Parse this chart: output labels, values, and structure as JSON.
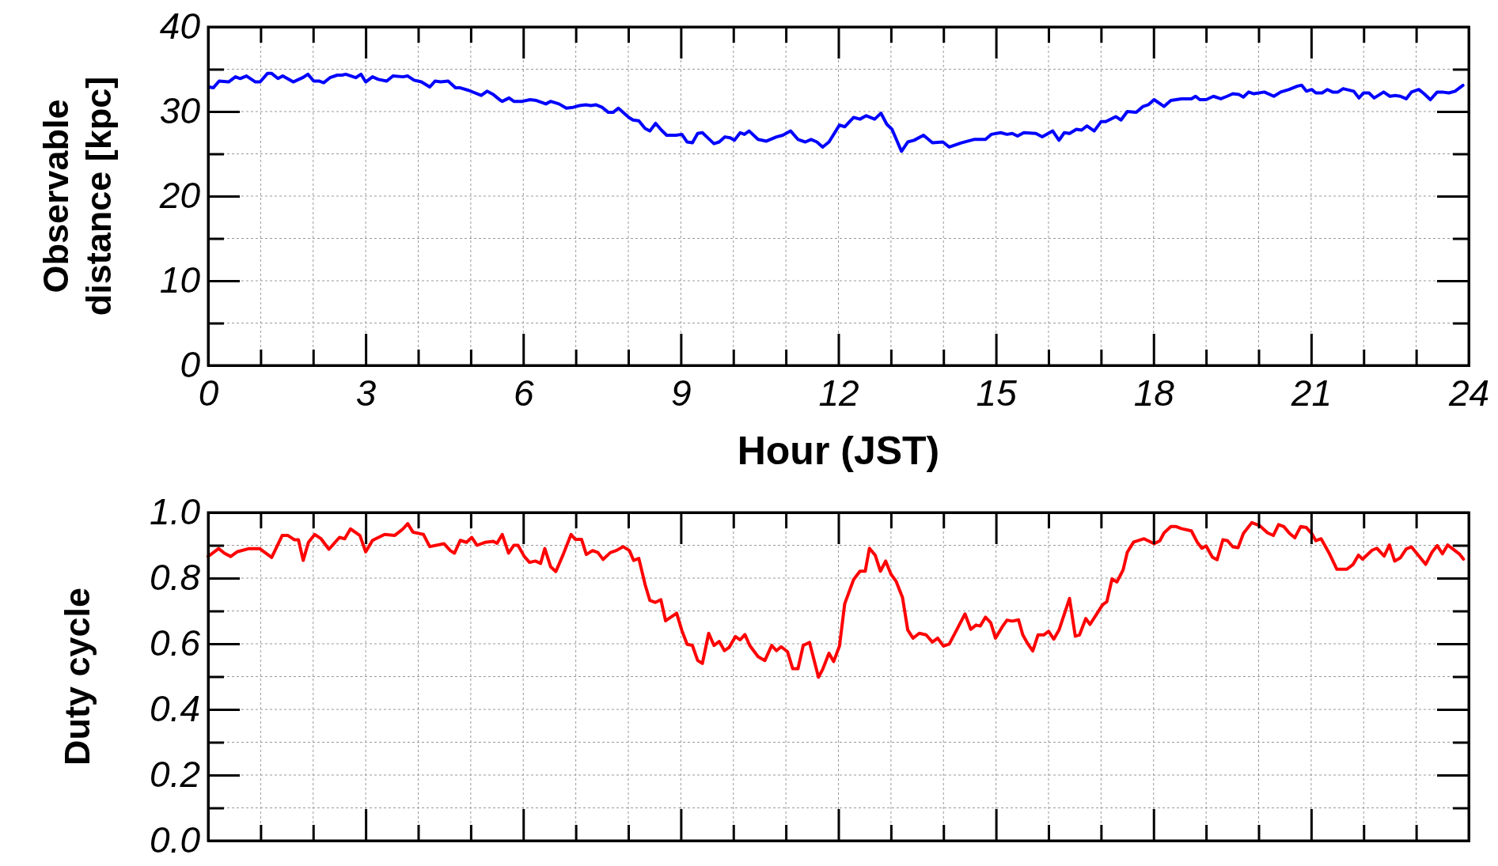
{
  "chart_data": [
    {
      "type": "line",
      "xlabel": "Hour (JST)",
      "ylabel": "Observable\ndistance [kpc]",
      "xlim": [
        0,
        24
      ],
      "ylim": [
        0,
        40
      ],
      "xticks": [
        0,
        {
          "value": 1,
          "label": null
        },
        {
          "value": 2,
          "label": null
        },
        3,
        {
          "value": 4,
          "label": null
        },
        {
          "value": 5,
          "label": null
        },
        6,
        {
          "value": 7,
          "label": null
        },
        {
          "value": 8,
          "label": null
        },
        9,
        {
          "value": 10,
          "label": null
        },
        {
          "value": 11,
          "label": null
        },
        12,
        {
          "value": 13,
          "label": null
        },
        {
          "value": 14,
          "label": null
        },
        15,
        {
          "value": 16,
          "label": null
        },
        {
          "value": 17,
          "label": null
        },
        18,
        {
          "value": 19,
          "label": null
        },
        {
          "value": 20,
          "label": null
        },
        21,
        {
          "value": 22,
          "label": null
        },
        {
          "value": 23,
          "label": null
        },
        24
      ],
      "yticks": [
        0,
        {
          "value": 5,
          "label": null
        },
        10,
        {
          "value": 15,
          "label": null
        },
        20,
        {
          "value": 25,
          "label": null
        },
        30,
        {
          "value": 35,
          "label": null
        },
        40
      ],
      "grid": true,
      "marker": "none",
      "line_style": "solid",
      "series": [
        {
          "color": "#0000ff",
          "x": [
            0.02,
            0.1,
            0.21,
            0.39,
            0.52,
            0.61,
            0.73,
            0.9,
            0.99,
            1.13,
            1.21,
            1.33,
            1.42,
            1.62,
            1.8,
            1.9,
            2.01,
            2.11,
            2.2,
            2.32,
            2.46,
            2.55,
            2.62,
            2.81,
            2.91,
            3.0,
            3.13,
            3.24,
            3.4,
            3.52,
            3.71,
            3.8,
            3.92,
            4.06,
            4.22,
            4.32,
            4.43,
            4.57,
            4.71,
            4.8,
            4.96,
            5.2,
            5.31,
            5.43,
            5.57,
            5.6,
            5.73,
            5.82,
            5.98,
            6.13,
            6.25,
            6.43,
            6.52,
            6.68,
            6.82,
            6.95,
            7.07,
            7.19,
            7.29,
            7.38,
            7.5,
            7.62,
            7.71,
            7.81,
            8.01,
            8.09,
            8.2,
            8.32,
            8.41,
            8.52,
            8.63,
            8.73,
            8.91,
            9.02,
            9.12,
            9.22,
            9.32,
            9.41,
            9.51,
            9.63,
            9.73,
            9.84,
            9.94,
            10.02,
            10.13,
            10.21,
            10.3,
            10.47,
            10.63,
            10.82,
            10.94,
            11.09,
            11.23,
            11.37,
            11.48,
            11.59,
            11.7,
            11.82,
            12.02,
            12.12,
            12.29,
            12.41,
            12.53,
            12.69,
            12.81,
            12.92,
            13.02,
            13.2,
            13.32,
            13.44,
            13.62,
            13.79,
            13.99,
            14.11,
            14.34,
            14.58,
            14.8,
            14.91,
            15.09,
            15.21,
            15.31,
            15.41,
            15.53,
            15.76,
            15.88,
            16.08,
            16.2,
            16.3,
            16.4,
            16.53,
            16.63,
            16.73,
            16.87,
            17.0,
            17.09,
            17.28,
            17.38,
            17.5,
            17.67,
            17.8,
            17.9,
            18.01,
            18.2,
            18.33,
            18.53,
            18.72,
            18.8,
            18.88,
            19.0,
            19.14,
            19.28,
            19.4,
            19.51,
            19.63,
            19.71,
            19.81,
            19.91,
            20.11,
            20.29,
            20.42,
            20.58,
            20.74,
            20.82,
            20.91,
            21.01,
            21.09,
            21.21,
            21.31,
            21.41,
            21.51,
            21.61,
            21.81,
            21.91,
            22.0,
            22.1,
            22.2,
            22.38,
            22.5,
            22.6,
            22.7,
            22.81,
            22.91,
            23.05,
            23.15,
            23.27,
            23.4,
            23.5,
            23.62,
            23.74,
            23.89
          ],
          "values": [
            32.9,
            32.8,
            33.6,
            33.5,
            34.1,
            33.9,
            34.2,
            33.5,
            33.5,
            34.5,
            34.5,
            33.9,
            34.2,
            33.5,
            34.0,
            34.4,
            33.6,
            33.6,
            33.4,
            34.0,
            34.3,
            34.3,
            34.4,
            34.0,
            34.4,
            33.5,
            34.1,
            33.8,
            33.6,
            34.2,
            34.1,
            34.2,
            33.7,
            33.5,
            32.9,
            33.6,
            33.5,
            33.6,
            32.8,
            32.8,
            32.5,
            31.9,
            32.4,
            32.0,
            31.3,
            31.2,
            31.6,
            31.2,
            31.2,
            31.4,
            31.3,
            30.9,
            31.2,
            30.9,
            30.4,
            30.5,
            30.7,
            30.8,
            30.7,
            30.8,
            30.5,
            29.9,
            29.9,
            30.4,
            29.3,
            29.0,
            28.9,
            28.0,
            27.7,
            28.6,
            27.8,
            27.2,
            27.2,
            27.3,
            26.4,
            26.3,
            27.4,
            27.5,
            26.9,
            26.2,
            26.4,
            27.0,
            26.9,
            26.6,
            27.5,
            27.3,
            27.7,
            26.7,
            26.5,
            27.0,
            27.2,
            27.7,
            26.7,
            26.4,
            26.7,
            26.4,
            25.8,
            26.4,
            28.4,
            28.2,
            29.3,
            29.1,
            29.5,
            29.1,
            29.8,
            28.5,
            27.9,
            25.3,
            26.4,
            26.6,
            27.2,
            26.3,
            26.4,
            25.8,
            26.3,
            26.7,
            26.7,
            27.3,
            27.5,
            27.3,
            27.4,
            27.1,
            27.5,
            27.4,
            27.0,
            27.7,
            26.6,
            27.5,
            27.4,
            27.9,
            27.8,
            28.3,
            27.7,
            28.8,
            28.8,
            29.4,
            29.0,
            30.0,
            29.9,
            30.6,
            30.8,
            31.4,
            30.6,
            31.3,
            31.5,
            31.5,
            31.8,
            31.4,
            31.4,
            31.8,
            31.5,
            31.8,
            32.1,
            32.0,
            31.7,
            32.3,
            32.1,
            32.3,
            31.8,
            32.3,
            32.6,
            33.0,
            33.1,
            32.4,
            32.6,
            32.2,
            32.2,
            32.6,
            32.3,
            32.3,
            32.7,
            32.4,
            31.6,
            32.2,
            32.2,
            31.6,
            32.3,
            31.8,
            31.9,
            31.8,
            31.5,
            32.3,
            32.6,
            32.1,
            31.4,
            32.3,
            32.3,
            32.2,
            32.4,
            33.1
          ]
        }
      ]
    },
    {
      "type": "line",
      "ylabel": "Duty cycle",
      "xlim": [
        0,
        24
      ],
      "ylim": [
        0,
        1
      ],
      "tick_labels": "y",
      "xticks": [
        0,
        {
          "value": 1,
          "label": null
        },
        {
          "value": 2,
          "label": null
        },
        3,
        {
          "value": 4,
          "label": null
        },
        {
          "value": 5,
          "label": null
        },
        6,
        {
          "value": 7,
          "label": null
        },
        {
          "value": 8,
          "label": null
        },
        9,
        {
          "value": 10,
          "label": null
        },
        {
          "value": 11,
          "label": null
        },
        12,
        {
          "value": 13,
          "label": null
        },
        {
          "value": 14,
          "label": null
        },
        15,
        {
          "value": 16,
          "label": null
        },
        {
          "value": 17,
          "label": null
        },
        18,
        {
          "value": 19,
          "label": null
        },
        {
          "value": 20,
          "label": null
        },
        21,
        {
          "value": 22,
          "label": null
        },
        {
          "value": 23,
          "label": null
        },
        24
      ],
      "yticks": [
        {
          "value": 0,
          "label": "0.0"
        },
        {
          "value": 0.1,
          "label": null
        },
        0.2,
        {
          "value": 0.3,
          "label": null
        },
        0.4,
        {
          "value": 0.5,
          "label": null
        },
        0.6,
        {
          "value": 0.7,
          "label": null
        },
        0.8,
        {
          "value": 0.9,
          "label": null
        },
        {
          "value": 1,
          "label": "1.0"
        }
      ],
      "grid": true,
      "marker": "none",
      "line_style": "solid",
      "series": [
        {
          "color": "#ff0000",
          "x": [
            0,
            0.2,
            0.31,
            0.43,
            0.55,
            0.78,
            0.98,
            1.21,
            1.41,
            1.52,
            1.64,
            1.72,
            1.81,
            1.91,
            2.03,
            2.15,
            2.3,
            2.5,
            2.6,
            2.71,
            2.89,
            3.0,
            3.13,
            3.36,
            3.55,
            3.71,
            3.8,
            3.9,
            4.1,
            4.22,
            4.49,
            4.61,
            4.69,
            4.8,
            4.92,
            5.02,
            5.12,
            5.27,
            5.43,
            5.5,
            5.6,
            5.72,
            5.82,
            5.9,
            6.02,
            6.12,
            6.23,
            6.33,
            6.41,
            6.52,
            6.62,
            6.76,
            6.91,
            6.99,
            7.11,
            7.2,
            7.32,
            7.42,
            7.52,
            7.66,
            7.77,
            7.9,
            8.02,
            8.1,
            8.2,
            8.32,
            8.41,
            8.51,
            8.62,
            8.71,
            8.92,
            9.02,
            9.12,
            9.22,
            9.32,
            9.41,
            9.53,
            9.63,
            9.73,
            9.83,
            9.92,
            10.04,
            10.13,
            10.22,
            10.31,
            10.47,
            10.6,
            10.73,
            10.82,
            10.91,
            11.03,
            11.13,
            11.23,
            11.33,
            11.45,
            11.62,
            11.7,
            11.82,
            11.91,
            12.02,
            12.12,
            12.29,
            12.41,
            12.51,
            12.59,
            12.7,
            12.8,
            12.9,
            13.0,
            13.1,
            13.22,
            13.32,
            13.42,
            13.54,
            13.67,
            13.79,
            13.89,
            14.0,
            14.11,
            14.27,
            14.41,
            14.52,
            14.62,
            14.7,
            14.8,
            14.9,
            14.99,
            15.12,
            15.21,
            15.31,
            15.43,
            15.51,
            15.61,
            15.7,
            15.8,
            15.91,
            16.0,
            16.1,
            16.2,
            16.4,
            16.51,
            16.59,
            16.71,
            16.79,
            16.91,
            17.03,
            17.11,
            17.21,
            17.3,
            17.42,
            17.5,
            17.62,
            17.82,
            18.01,
            18.12,
            18.2,
            18.33,
            18.43,
            18.53,
            18.72,
            18.83,
            18.92,
            19.0,
            19.12,
            19.21,
            19.32,
            19.41,
            19.51,
            19.61,
            19.71,
            19.87,
            20.02,
            20.17,
            20.28,
            20.38,
            20.48,
            20.59,
            20.69,
            20.8,
            20.91,
            21.01,
            21.09,
            21.19,
            21.35,
            21.49,
            21.68,
            21.8,
            21.9,
            21.98,
            22.16,
            22.25,
            22.39,
            22.49,
            22.59,
            22.7,
            22.81,
            22.91,
            23.18,
            23.3,
            23.4,
            23.5,
            23.6,
            23.82,
            23.9
          ],
          "values": [
            0.866,
            0.89,
            0.876,
            0.866,
            0.88,
            0.89,
            0.89,
            0.863,
            0.93,
            0.93,
            0.917,
            0.917,
            0.854,
            0.909,
            0.933,
            0.92,
            0.888,
            0.924,
            0.92,
            0.95,
            0.93,
            0.88,
            0.915,
            0.933,
            0.93,
            0.95,
            0.966,
            0.94,
            0.933,
            0.896,
            0.905,
            0.884,
            0.876,
            0.915,
            0.909,
            0.924,
            0.9,
            0.909,
            0.912,
            0.906,
            0.933,
            0.876,
            0.9,
            0.9,
            0.866,
            0.848,
            0.852,
            0.845,
            0.89,
            0.835,
            0.82,
            0.872,
            0.933,
            0.918,
            0.918,
            0.872,
            0.884,
            0.878,
            0.857,
            0.878,
            0.884,
            0.896,
            0.884,
            0.854,
            0.86,
            0.78,
            0.732,
            0.726,
            0.734,
            0.67,
            0.693,
            0.64,
            0.598,
            0.595,
            0.549,
            0.54,
            0.632,
            0.595,
            0.607,
            0.579,
            0.589,
            0.622,
            0.612,
            0.628,
            0.595,
            0.561,
            0.549,
            0.595,
            0.579,
            0.591,
            0.576,
            0.524,
            0.524,
            0.595,
            0.604,
            0.498,
            0.522,
            0.571,
            0.546,
            0.593,
            0.722,
            0.796,
            0.821,
            0.821,
            0.891,
            0.87,
            0.821,
            0.852,
            0.812,
            0.79,
            0.741,
            0.642,
            0.617,
            0.632,
            0.627,
            0.605,
            0.617,
            0.593,
            0.599,
            0.648,
            0.691,
            0.644,
            0.657,
            0.654,
            0.681,
            0.664,
            0.617,
            0.652,
            0.672,
            0.669,
            0.673,
            0.627,
            0.599,
            0.578,
            0.627,
            0.627,
            0.638,
            0.614,
            0.642,
            0.738,
            0.623,
            0.627,
            0.677,
            0.659,
            0.689,
            0.719,
            0.728,
            0.798,
            0.788,
            0.825,
            0.879,
            0.91,
            0.92,
            0.905,
            0.914,
            0.938,
            0.957,
            0.957,
            0.951,
            0.944,
            0.91,
            0.891,
            0.898,
            0.864,
            0.856,
            0.917,
            0.914,
            0.895,
            0.893,
            0.936,
            0.969,
            0.96,
            0.938,
            0.93,
            0.963,
            0.957,
            0.936,
            0.923,
            0.957,
            0.954,
            0.936,
            0.914,
            0.92,
            0.874,
            0.827,
            0.827,
            0.842,
            0.87,
            0.858,
            0.885,
            0.891,
            0.867,
            0.901,
            0.852,
            0.862,
            0.889,
            0.895,
            0.842,
            0.879,
            0.899,
            0.874,
            0.901,
            0.874,
            0.858
          ]
        }
      ]
    }
  ]
}
